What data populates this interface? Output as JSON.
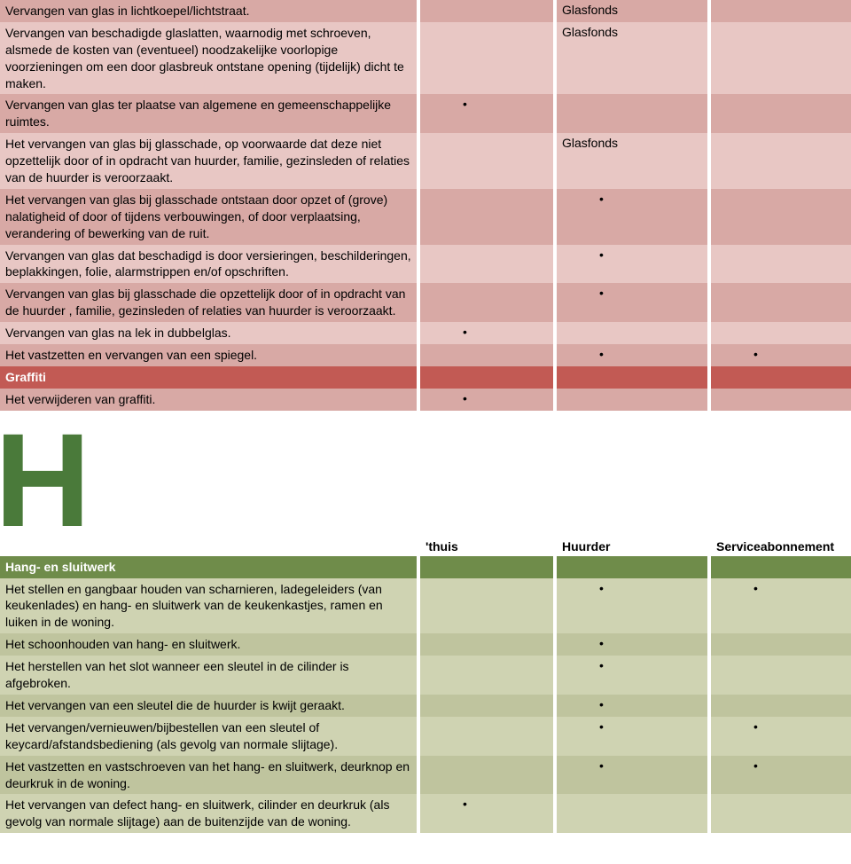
{
  "colors": {
    "pink_light": "#e8c7c4",
    "pink_dark": "#d8a9a5",
    "red_header": "#c25a54",
    "green_light": "#cfd3b2",
    "green_dark": "#bfc49e",
    "green_header": "#6f8c4a",
    "green_letter": "#4a7a3a",
    "white": "#ffffff",
    "black": "#000000"
  },
  "bullet": "•",
  "section1": {
    "rows": [
      {
        "desc": "Vervangen van glas in lichtkoepel/lichtstraat.",
        "c1": "",
        "c2": "Glasfonds",
        "c3": "",
        "bg": "pink_dark"
      },
      {
        "desc": "Vervangen van beschadigde glaslatten, waarnodig met schroeven, alsmede de kosten van (eventueel) noodzakelijke voorlopige voorzieningen om een door glasbreuk ontstane opening (tijdelijk) dicht te maken.",
        "c1": "",
        "c2": "Glasfonds",
        "c3": "",
        "bg": "pink_light"
      },
      {
        "desc": "Vervangen van glas ter plaatse van algemene en gemeen­schappelijke ruimtes.",
        "c1": "•",
        "c2": "",
        "c3": "",
        "bg": "pink_dark"
      },
      {
        "desc": "Het vervangen van glas bij glasschade, op voorwaarde dat deze niet opzettelijk door of in opdracht van huurder, familie, gezinsleden of relaties van de huurder is veroorzaakt.",
        "c1": "",
        "c2": "Glasfonds",
        "c3": "",
        "bg": "pink_light"
      },
      {
        "desc": "Het vervangen van glas bij glasschade ontstaan door opzet of (grove) nalatigheid of door of tijdens verbouwingen, of door verplaatsing, verandering of bewerking van de ruit.",
        "c1": "",
        "c2": "•",
        "c3": "",
        "bg": "pink_dark"
      },
      {
        "desc": "Vervangen van glas dat beschadigd is door versieringen, beschilderingen, beplakkingen, folie, alarmstrippen en/of opschriften.",
        "c1": "",
        "c2": "•",
        "c3": "",
        "bg": "pink_light"
      },
      {
        "desc": "Vervangen van glas bij glasschade die opzettelijk door of in opdracht van de huurder , familie, gezinsleden of relaties van huurder is veroorzaakt.",
        "c1": "",
        "c2": "•",
        "c3": "",
        "bg": "pink_dark"
      },
      {
        "desc": "Vervangen van glas na lek in dubbelglas.",
        "c1": "•",
        "c2": "",
        "c3": "",
        "bg": "pink_light"
      },
      {
        "desc": "Het vastzetten en vervangen van een spiegel.",
        "c1": "",
        "c2": "•",
        "c3": "•",
        "bg": "pink_dark"
      }
    ],
    "header2": "Graffiti",
    "rows2": [
      {
        "desc": "Het verwijderen van graffiti.",
        "c1": "•",
        "c2": "",
        "c3": "",
        "bg": "pink_dark"
      }
    ]
  },
  "section2": {
    "letter": "H",
    "columns": {
      "c1": "'thuis",
      "c2": "Huurder",
      "c3": "Serviceabonnement"
    },
    "header": "Hang- en sluitwerk",
    "rows": [
      {
        "desc": "Het stellen en gangbaar houden van scharnieren, ladegeleiders (van keukenlades) en hang- en sluitwerk van de keukenkastjes, ramen en luiken in de woning.",
        "c1": "",
        "c2": "•",
        "c3": "•",
        "bg": "green_light"
      },
      {
        "desc": "Het schoonhouden van hang- en sluitwerk.",
        "c1": "",
        "c2": "•",
        "c3": "",
        "bg": "green_dark"
      },
      {
        "desc": "Het herstellen van het slot wanneer een sleutel in de cilinder is afgebroken.",
        "c1": "",
        "c2": "•",
        "c3": "",
        "bg": "green_light"
      },
      {
        "desc": "Het vervangen van een sleutel die de huurder is kwijt geraakt.",
        "c1": "",
        "c2": "•",
        "c3": "",
        "bg": "green_dark"
      },
      {
        "desc": "Het vervangen/vernieuwen/bijbestellen van een sleutel of keycard/afstandsbediening (als gevolg van normale slijtage).",
        "c1": "",
        "c2": "•",
        "c3": "•",
        "bg": "green_light"
      },
      {
        "desc": "Het vastzetten en vastschroeven van het hang- en sluitwerk, deurknop en deurkruk in de woning.",
        "c1": "",
        "c2": "•",
        "c3": "•",
        "bg": "green_dark"
      },
      {
        "desc": "Het vervangen van defect hang- en sluitwerk, cilinder en deurkruk (als gevolg van normale slijtage) aan de buitenzijde van de woning.",
        "c1": "•",
        "c2": "",
        "c3": "",
        "bg": "green_light"
      }
    ]
  }
}
